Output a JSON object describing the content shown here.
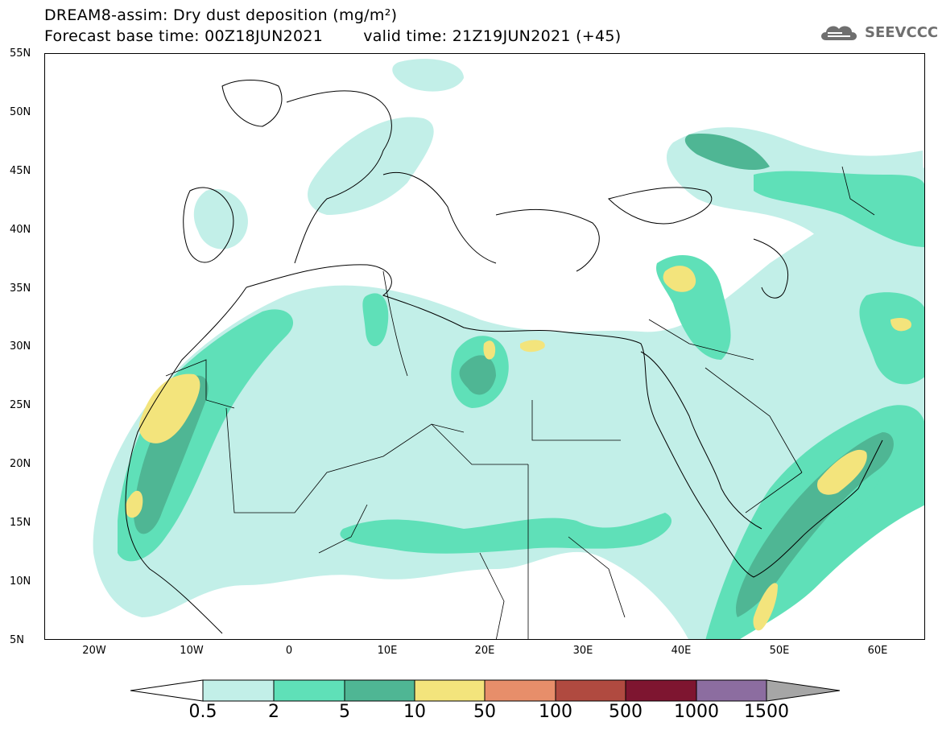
{
  "header": {
    "title": "DREAM8-assim: Dry dust deposition (mg/m²)",
    "base_time": "Forecast base time: 00Z18JUN2021",
    "valid_time": "valid time: 21Z19JUN2021 (+45)"
  },
  "logo": {
    "text": "SEEVCCC",
    "icon": "cloud-icon",
    "color": "#6f6f6f"
  },
  "axes": {
    "lat_labels": [
      "55N",
      "50N",
      "45N",
      "40N",
      "35N",
      "30N",
      "25N",
      "20N",
      "15N",
      "10N",
      "5N"
    ],
    "lon_labels": [
      "20W",
      "10W",
      "0",
      "10E",
      "20E",
      "30E",
      "40E",
      "50E",
      "60E"
    ]
  },
  "colorbar": {
    "ticks": [
      "0.5",
      "2",
      "5",
      "10",
      "50",
      "100",
      "500",
      "1000",
      "1500"
    ],
    "colors": [
      "#c2efe8",
      "#5fe0b8",
      "#4fb694",
      "#f3e47c",
      "#e78e6a",
      "#b04a40",
      "#7e1530",
      "#8c6da0"
    ],
    "under_color": "#ffffff",
    "over_color": "#a6a6a6"
  }
}
